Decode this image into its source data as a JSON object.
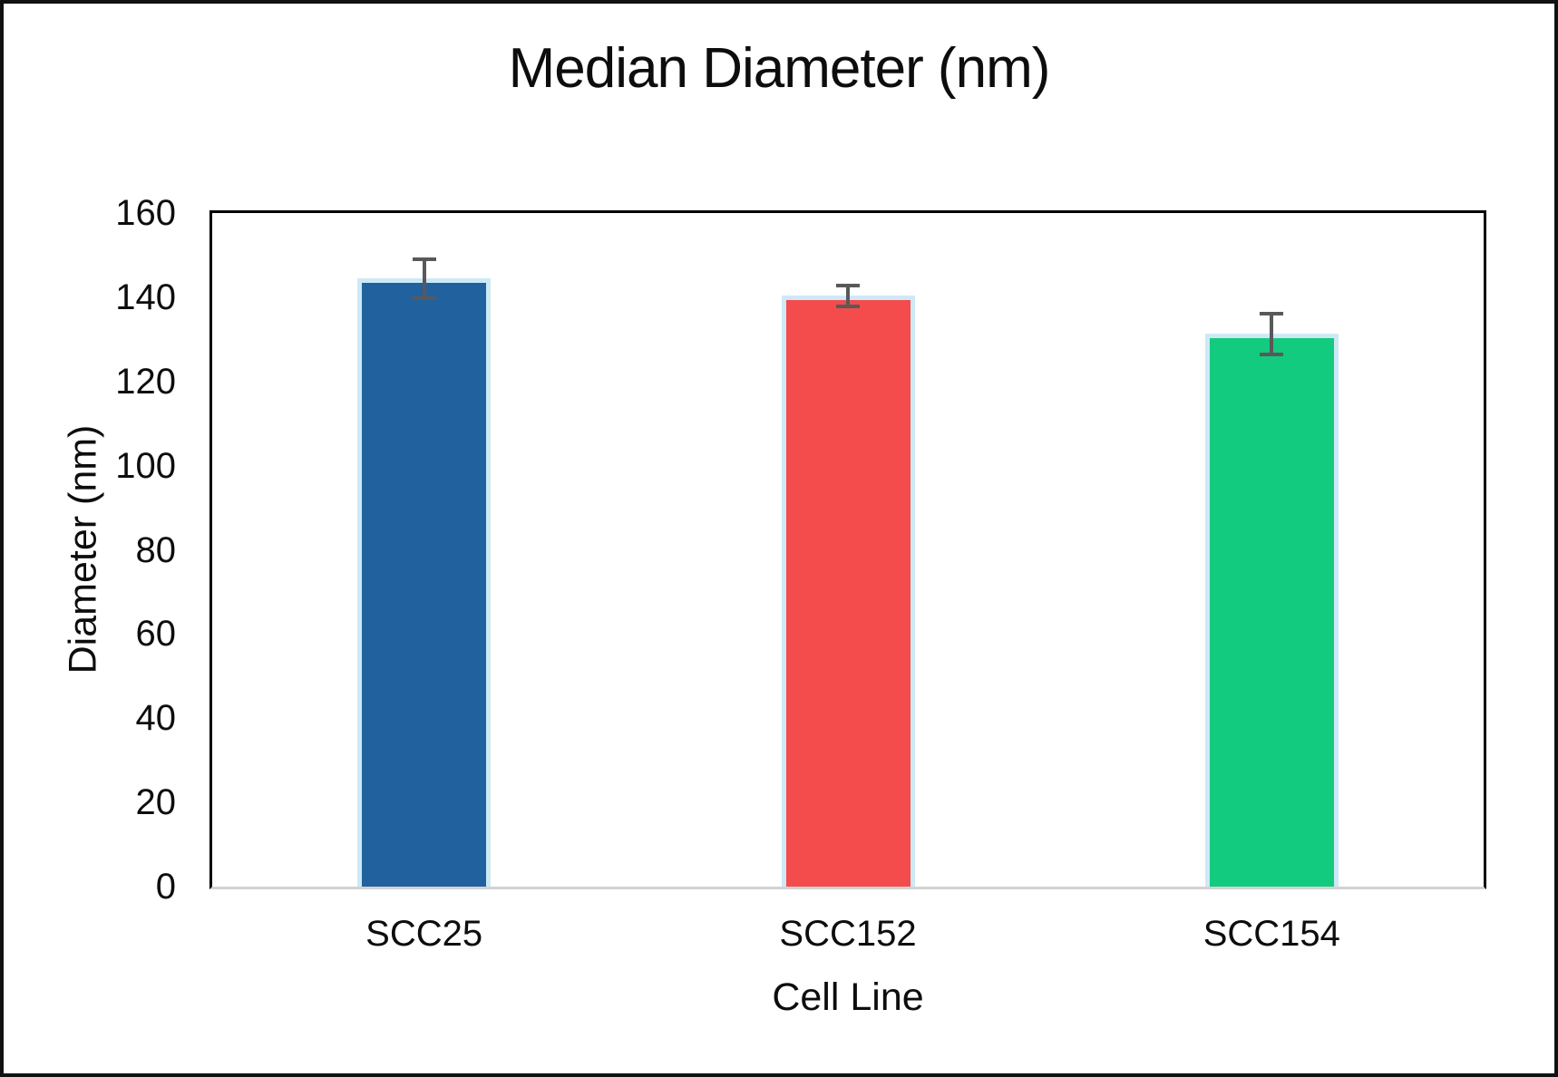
{
  "chart_data": {
    "type": "bar",
    "title": "Median Diameter (nm)",
    "xlabel": "Cell Line",
    "ylabel": "Diameter (nm)",
    "categories": [
      "SCC25",
      "SCC152",
      "SCC154"
    ],
    "series": [
      {
        "name": "Median Diameter (nm)",
        "values": [
          144.4,
          140.3,
          131.3
        ],
        "errors": [
          5.0,
          2.9,
          5.3
        ]
      }
    ],
    "ylim": [
      0,
      160
    ],
    "yticks": [
      0,
      20,
      40,
      60,
      80,
      100,
      120,
      140,
      160
    ],
    "grid": "off",
    "legend": "none",
    "bar_colors": [
      "#21619E",
      "#F44B4C",
      "#13CB7F"
    ],
    "bar_border_color": "#CDE9F6",
    "error_bar_color": "#595959",
    "axis_line_color": "#000000",
    "baseline_color": "#D3D3D3",
    "background_color": "#FFFFFF"
  }
}
